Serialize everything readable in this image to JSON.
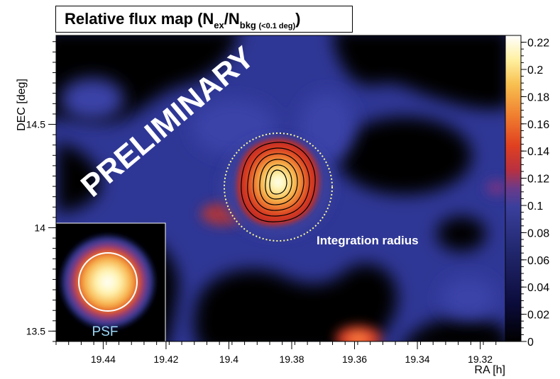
{
  "chart_data": {
    "type": "heatmap",
    "title": {
      "prefix": "Relative flux map (N",
      "sub1": "ex",
      "mid": "/N",
      "sub2": "bkg",
      "sub3": "(<0.1 deg)",
      "suffix": ")"
    },
    "xlabel": "RA [h]",
    "ylabel": "DEC [deg]",
    "xlim": [
      19.455,
      19.312
    ],
    "ylim": [
      13.45,
      14.93
    ],
    "x_ticks": [
      "19.44",
      "19.42",
      "19.4",
      "19.38",
      "19.36",
      "19.34",
      "19.32"
    ],
    "x_tick_values": [
      19.44,
      19.42,
      19.4,
      19.38,
      19.36,
      19.34,
      19.32
    ],
    "y_ticks": [
      "13.5",
      "14",
      "14.5"
    ],
    "y_tick_values": [
      13.5,
      14.0,
      14.5
    ],
    "colorbar": {
      "min": 0,
      "max": 0.225,
      "ticks": [
        "0",
        "0.02",
        "0.04",
        "0.06",
        "0.08",
        "0.1",
        "0.12",
        "0.14",
        "0.16",
        "0.18",
        "0.2",
        "0.22"
      ],
      "tick_values": [
        0,
        0.02,
        0.04,
        0.06,
        0.08,
        0.1,
        0.12,
        0.14,
        0.16,
        0.18,
        0.2,
        0.22
      ]
    },
    "hotspots": [
      {
        "ra": 19.385,
        "dec": 14.22,
        "peak": 0.22,
        "role": "source"
      },
      {
        "ra": 19.358,
        "dec": 13.49,
        "peak": 0.14
      },
      {
        "ra": 19.405,
        "dec": 14.06,
        "peak": 0.11
      }
    ],
    "contour_levels": [
      0.08,
      0.1,
      0.12,
      0.14,
      0.16,
      0.18,
      0.2
    ],
    "integration_circle": {
      "ra": 19.385,
      "dec": 14.19,
      "radius_deg": 0.25,
      "label": "Integration radius"
    },
    "watermark": "PRELIMINARY",
    "psf_inset": {
      "label": "PSF"
    },
    "colors": {
      "background_low": "#000000",
      "mid": "#2a2f90",
      "high": "#d43020",
      "peak": "#ffffff",
      "circle": "#ffff99",
      "psf_label": "#9cd8f4"
    }
  }
}
